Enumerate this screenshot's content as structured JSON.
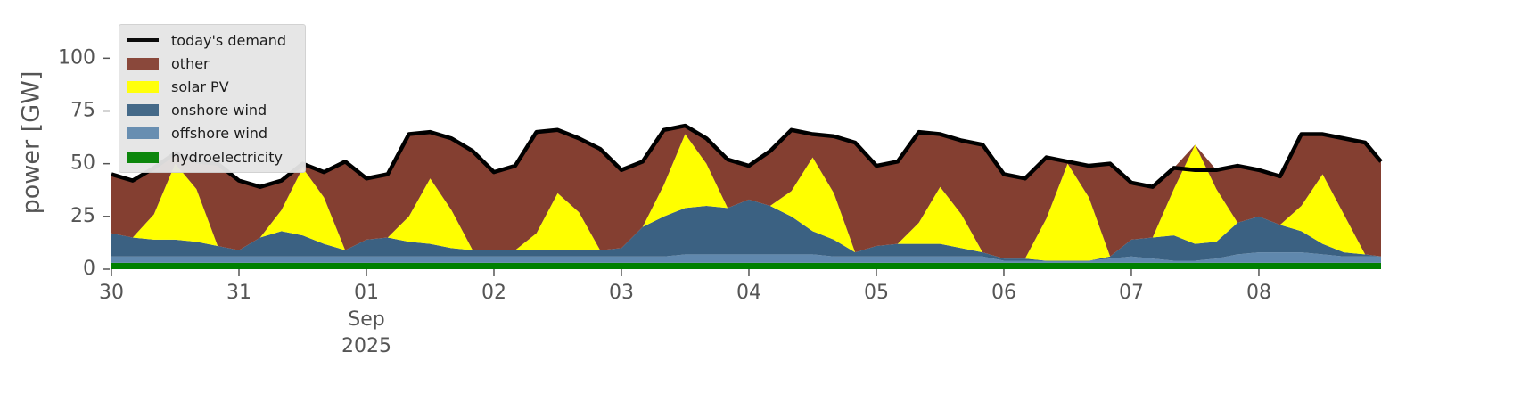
{
  "chart_data": {
    "type": "stacked_area",
    "y_label": "power [GW]",
    "x": [
      "2025-08-30T00:00",
      "2025-08-30T04:00",
      "2025-08-30T08:00",
      "2025-08-30T12:00",
      "2025-08-30T16:00",
      "2025-08-30T20:00",
      "2025-08-31T00:00",
      "2025-08-31T04:00",
      "2025-08-31T08:00",
      "2025-08-31T12:00",
      "2025-08-31T16:00",
      "2025-08-31T20:00",
      "2025-09-01T00:00",
      "2025-09-01T04:00",
      "2025-09-01T08:00",
      "2025-09-01T12:00",
      "2025-09-01T16:00",
      "2025-09-01T20:00",
      "2025-09-02T00:00",
      "2025-09-02T04:00",
      "2025-09-02T08:00",
      "2025-09-02T12:00",
      "2025-09-02T16:00",
      "2025-09-02T20:00",
      "2025-09-03T00:00",
      "2025-09-03T04:00",
      "2025-09-03T08:00",
      "2025-09-03T12:00",
      "2025-09-03T16:00",
      "2025-09-03T20:00",
      "2025-09-04T00:00",
      "2025-09-04T04:00",
      "2025-09-04T08:00",
      "2025-09-04T12:00",
      "2025-09-04T16:00",
      "2025-09-04T20:00",
      "2025-09-05T00:00",
      "2025-09-05T04:00",
      "2025-09-05T08:00",
      "2025-09-05T12:00",
      "2025-09-05T16:00",
      "2025-09-05T20:00",
      "2025-09-06T00:00",
      "2025-09-06T04:00",
      "2025-09-06T08:00",
      "2025-09-06T12:00",
      "2025-09-06T16:00",
      "2025-09-06T20:00",
      "2025-09-07T00:00",
      "2025-09-07T04:00",
      "2025-09-07T08:00",
      "2025-09-07T12:00",
      "2025-09-07T16:00",
      "2025-09-07T20:00",
      "2025-09-08T00:00",
      "2025-09-08T04:00",
      "2025-09-08T08:00",
      "2025-09-08T12:00",
      "2025-09-08T16:00",
      "2025-09-08T20:00",
      "2025-09-08T23:00"
    ],
    "series": [
      {
        "name": "hydroelectricity",
        "color": "#008000",
        "values": [
          3,
          3,
          3,
          3,
          3,
          3,
          3,
          3,
          3,
          3,
          3,
          3,
          3,
          3,
          3,
          3,
          3,
          3,
          3,
          3,
          3,
          3,
          3,
          3,
          3,
          3,
          3,
          3,
          3,
          3,
          3,
          3,
          3,
          3,
          3,
          3,
          3,
          3,
          3,
          3,
          3,
          3,
          3,
          3,
          3,
          3,
          3,
          3,
          3,
          3,
          3,
          3,
          3,
          3,
          3,
          3,
          3,
          3,
          3,
          3,
          3
        ]
      },
      {
        "name": "offshore wind",
        "color": "#6088ad",
        "values": [
          3,
          3,
          3,
          3,
          3,
          3,
          3,
          3,
          3,
          3,
          3,
          3,
          3,
          3,
          3,
          3,
          3,
          3,
          3,
          3,
          3,
          3,
          3,
          3,
          3,
          3,
          3,
          4,
          4,
          4,
          4,
          4,
          4,
          4,
          3,
          3,
          3,
          3,
          3,
          3,
          3,
          3,
          1,
          1,
          1,
          1,
          1,
          2,
          3,
          2,
          1,
          1,
          2,
          4,
          5,
          5,
          5,
          4,
          3,
          3,
          3
        ]
      },
      {
        "name": "onshore wind",
        "color": "#3b6182",
        "values": [
          11,
          9,
          8,
          8,
          7,
          5,
          3,
          9,
          12,
          10,
          6,
          3,
          8,
          9,
          7,
          6,
          4,
          3,
          3,
          3,
          3,
          3,
          3,
          3,
          4,
          14,
          19,
          22,
          23,
          22,
          26,
          23,
          18,
          11,
          8,
          2,
          5,
          6,
          6,
          6,
          4,
          2,
          1,
          1,
          0,
          0,
          0,
          1,
          8,
          10,
          12,
          8,
          8,
          15,
          17,
          13,
          10,
          5,
          2,
          1,
          0
        ]
      },
      {
        "name": "solar PV",
        "color": "#ffff00",
        "values": [
          0,
          0,
          12,
          36,
          25,
          0,
          0,
          0,
          10,
          32,
          22,
          0,
          0,
          0,
          12,
          31,
          18,
          0,
          0,
          0,
          8,
          27,
          18,
          0,
          0,
          0,
          15,
          35,
          20,
          0,
          0,
          0,
          12,
          35,
          22,
          0,
          0,
          0,
          10,
          27,
          16,
          0,
          0,
          0,
          20,
          46,
          30,
          0,
          0,
          0,
          22,
          47,
          25,
          0,
          0,
          0,
          12,
          33,
          18,
          0,
          0
        ]
      },
      {
        "name": "other",
        "color": "#843f31",
        "values": [
          28,
          27,
          22,
          5,
          13,
          39,
          33,
          24,
          14,
          2,
          12,
          42,
          29,
          30,
          39,
          22,
          34,
          47,
          37,
          40,
          48,
          30,
          35,
          48,
          37,
          31,
          26,
          4,
          12,
          23,
          16,
          26,
          29,
          11,
          27,
          52,
          38,
          39,
          43,
          25,
          35,
          51,
          40,
          38,
          29,
          1,
          15,
          44,
          27,
          24,
          10,
          0,
          9,
          27,
          22,
          23,
          34,
          19,
          36,
          53,
          45
        ]
      }
    ],
    "line": {
      "name": "today's demand",
      "color": "#000000",
      "values": [
        45,
        42,
        48,
        55,
        51,
        50,
        42,
        39,
        42,
        50,
        46,
        51,
        43,
        45,
        64,
        65,
        62,
        56,
        46,
        49,
        65,
        66,
        62,
        57,
        47,
        51,
        66,
        68,
        62,
        52,
        49,
        56,
        66,
        64,
        63,
        60,
        49,
        51,
        65,
        64,
        61,
        59,
        45,
        43,
        53,
        51,
        49,
        50,
        41,
        39,
        48,
        47,
        47,
        49,
        47,
        44,
        64,
        64,
        62,
        60,
        51
      ]
    },
    "xlim": [
      "2025-08-30T00:00",
      "2025-09-08T23:00"
    ],
    "xticks": [
      {
        "value": "2025-08-30T00:00",
        "label": "30"
      },
      {
        "value": "2025-08-31T00:00",
        "label": "31"
      },
      {
        "value": "2025-09-01T00:00",
        "label": "01\nSep\n2025"
      },
      {
        "value": "2025-09-02T00:00",
        "label": "02"
      },
      {
        "value": "2025-09-03T00:00",
        "label": "03"
      },
      {
        "value": "2025-09-04T00:00",
        "label": "04"
      },
      {
        "value": "2025-09-05T00:00",
        "label": "05"
      },
      {
        "value": "2025-09-06T00:00",
        "label": "06"
      },
      {
        "value": "2025-09-07T00:00",
        "label": "07"
      },
      {
        "value": "2025-09-08T00:00",
        "label": "08"
      }
    ],
    "ylim": [
      0,
      120
    ],
    "yticks": [
      0,
      25,
      50,
      75,
      100
    ],
    "legend": "upper left"
  }
}
